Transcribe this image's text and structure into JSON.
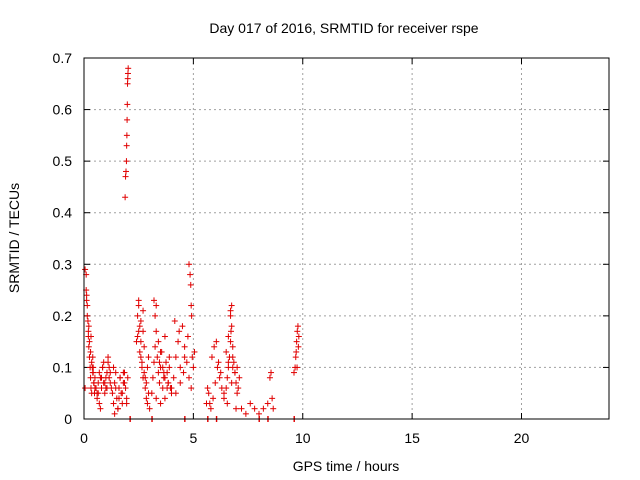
{
  "chart_data": {
    "type": "scatter",
    "title": "Day 017 of 2016, SRMTID for receiver rspe",
    "xlabel": "GPS time / hours",
    "ylabel": "SRMTID / TECUs",
    "xlim": [
      0,
      24
    ],
    "ylim": [
      0,
      0.7
    ],
    "x_ticks": [
      "0",
      "5",
      "10",
      "15",
      "20"
    ],
    "y_ticks": [
      "0",
      "0.1",
      "0.2",
      "0.3",
      "0.4",
      "0.5",
      "0.6",
      "0.7"
    ],
    "grid": true,
    "marker": "+",
    "color": "#e00000",
    "series": [
      {
        "x": [
          0.05,
          0.1,
          0.12,
          0.15,
          0.18,
          0.2,
          0.22,
          0.25,
          0.28,
          0.3,
          0.32,
          0.35,
          0.38,
          0.4,
          0.42,
          0.45,
          0.48,
          0.5,
          0.05,
          0.1,
          0.15,
          0.2,
          0.25,
          0.3,
          0.35,
          0.4,
          0.45,
          0.5,
          0.12,
          0.22,
          0.32,
          0.42,
          0.55,
          0.6,
          0.65,
          0.7,
          0.75,
          0.8,
          0.85,
          0.9,
          0.95,
          1.0,
          1.05,
          1.1,
          1.15,
          1.2,
          1.25,
          0.6,
          0.7,
          0.8,
          0.9,
          1.0,
          1.1,
          1.2,
          0.65,
          0.75,
          0.85,
          0.95,
          1.05,
          1.15,
          1.3,
          1.35,
          1.4,
          1.45,
          1.5,
          1.55,
          1.6,
          1.65,
          1.7,
          1.75,
          1.8,
          1.85,
          1.9,
          1.95,
          2.0,
          1.35,
          1.45,
          1.55,
          1.65,
          1.75,
          1.85,
          1.95,
          1.4,
          1.6,
          1.8,
          1.88,
          1.9,
          1.92,
          1.94,
          1.95,
          1.96,
          1.97,
          1.98,
          1.99,
          2.0,
          2.01,
          2.02,
          2.4,
          2.45,
          2.5,
          2.55,
          2.6,
          2.65,
          2.7,
          2.75,
          2.8,
          2.85,
          2.9,
          2.95,
          3.0,
          2.45,
          2.55,
          2.65,
          2.75,
          2.85,
          2.95,
          2.5,
          2.6,
          2.7,
          2.8,
          2.9,
          2.5,
          2.6,
          2.7,
          3.1,
          3.15,
          3.2,
          3.25,
          3.3,
          3.35,
          3.4,
          3.45,
          3.5,
          3.55,
          3.6,
          3.65,
          3.7,
          3.75,
          3.8,
          3.85,
          3.9,
          3.95,
          4.0,
          3.2,
          3.3,
          3.4,
          3.5,
          3.6,
          3.7,
          3.8,
          3.9,
          3.25,
          3.45,
          3.65,
          3.85,
          3.3,
          3.5,
          3.7,
          4.0,
          4.1,
          4.2,
          4.3,
          4.4,
          4.5,
          4.6,
          4.7,
          4.8,
          4.9,
          5.0,
          5.05,
          4.15,
          4.35,
          4.55,
          4.75,
          4.95,
          4.2,
          4.4,
          4.6,
          4.8,
          4.85,
          4.88,
          4.9,
          4.92,
          5.6,
          5.7,
          5.8,
          5.9,
          6.0,
          6.1,
          6.2,
          6.3,
          6.4,
          5.65,
          5.85,
          6.05,
          6.25,
          5.75,
          5.95,
          6.15,
          6.4,
          6.5,
          6.55,
          6.6,
          6.65,
          6.7,
          6.75,
          6.8,
          6.85,
          6.9,
          6.95,
          7.0,
          7.05,
          7.1,
          6.5,
          6.6,
          6.7,
          6.8,
          6.9,
          7.0,
          6.55,
          6.75,
          6.95,
          6.6,
          6.8,
          6.7,
          6.72,
          6.75,
          7.2,
          7.4,
          7.6,
          7.8,
          8.0,
          8.2,
          8.4,
          8.5,
          8.55,
          8.6,
          8.65,
          9.6,
          9.65,
          9.7,
          9.72,
          9.75,
          9.78,
          9.8,
          9.82,
          9.68,
          9.74,
          2.1,
          2.12,
          3.1,
          3.12,
          4.6,
          4.62,
          5.65,
          5.67,
          6.05,
          6.07,
          8.0,
          8.02,
          8.4,
          8.42,
          9.6,
          9.62
        ],
        "y": [
          0.06,
          0.28,
          0.24,
          0.22,
          0.19,
          0.16,
          0.14,
          0.12,
          0.1,
          0.08,
          0.06,
          0.05,
          0.1,
          0.12,
          0.09,
          0.07,
          0.05,
          0.08,
          0.29,
          0.25,
          0.2,
          0.17,
          0.15,
          0.13,
          0.11,
          0.09,
          0.07,
          0.06,
          0.23,
          0.18,
          0.16,
          0.1,
          0.06,
          0.05,
          0.07,
          0.09,
          0.08,
          0.06,
          0.1,
          0.07,
          0.05,
          0.08,
          0.09,
          0.11,
          0.1,
          0.07,
          0.06,
          0.04,
          0.03,
          0.08,
          0.11,
          0.06,
          0.12,
          0.09,
          0.05,
          0.02,
          0.1,
          0.07,
          0.06,
          0.08,
          0.05,
          0.03,
          0.07,
          0.09,
          0.04,
          0.02,
          0.06,
          0.08,
          0.05,
          0.03,
          0.07,
          0.09,
          0.06,
          0.04,
          0.08,
          0.1,
          0.06,
          0.02,
          0.08,
          0.05,
          0.07,
          0.03,
          0.01,
          0.04,
          0.09,
          0.43,
          0.47,
          0.48,
          0.5,
          0.53,
          0.55,
          0.58,
          0.61,
          0.65,
          0.66,
          0.67,
          0.68,
          0.15,
          0.2,
          0.22,
          0.18,
          0.12,
          0.1,
          0.08,
          0.14,
          0.06,
          0.04,
          0.1,
          0.12,
          0.02,
          0.16,
          0.13,
          0.11,
          0.09,
          0.07,
          0.05,
          0.23,
          0.19,
          0.17,
          0.08,
          0.03,
          0.17,
          0.15,
          0.21,
          0.05,
          0.08,
          0.11,
          0.14,
          0.17,
          0.12,
          0.09,
          0.07,
          0.1,
          0.13,
          0.06,
          0.08,
          0.04,
          0.11,
          0.09,
          0.07,
          0.1,
          0.06,
          0.05,
          0.23,
          0.22,
          0.15,
          0.13,
          0.1,
          0.08,
          0.06,
          0.12,
          0.2,
          0.11,
          0.09,
          0.07,
          0.04,
          0.03,
          0.16,
          0.06,
          0.08,
          0.12,
          0.15,
          0.1,
          0.18,
          0.14,
          0.11,
          0.08,
          0.06,
          0.1,
          0.13,
          0.19,
          0.17,
          0.09,
          0.16,
          0.12,
          0.05,
          0.07,
          0.12,
          0.3,
          0.28,
          0.26,
          0.22,
          0.2,
          0.03,
          0.05,
          0.02,
          0.04,
          0.07,
          0.1,
          0.08,
          0.06,
          0.05,
          0.06,
          0.12,
          0.15,
          0.09,
          0.03,
          0.14,
          0.11,
          0.04,
          0.06,
          0.08,
          0.1,
          0.12,
          0.15,
          0.18,
          0.14,
          0.11,
          0.09,
          0.07,
          0.1,
          0.06,
          0.08,
          0.13,
          0.16,
          0.2,
          0.12,
          0.09,
          0.05,
          0.03,
          0.07,
          0.02,
          0.11,
          0.1,
          0.21,
          0.17,
          0.22,
          0.02,
          0.01,
          0.03,
          0.02,
          0.01,
          0.02,
          0.03,
          0.08,
          0.09,
          0.04,
          0.02,
          0.09,
          0.1,
          0.13,
          0.15,
          0.17,
          0.18,
          0.14,
          0.16,
          0.12,
          0.1,
          0,
          0,
          0,
          0,
          0,
          0,
          0,
          0,
          0,
          0,
          0,
          0,
          0,
          0,
          0,
          0
        ]
      }
    ]
  }
}
